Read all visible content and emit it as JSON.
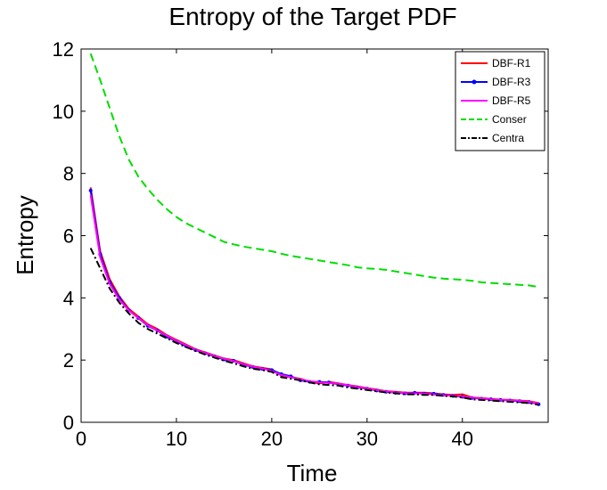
{
  "chart_data": {
    "type": "line",
    "title": "Entropy of the Target PDF",
    "xlabel": "Time",
    "ylabel": "Entropy",
    "xlim": [
      0,
      49
    ],
    "ylim": [
      0,
      12
    ],
    "xticks": [
      0,
      10,
      20,
      30,
      40
    ],
    "yticks": [
      0,
      2,
      4,
      6,
      8,
      10,
      12
    ],
    "grid": false,
    "legend_position": "top-right",
    "x": [
      1,
      2,
      3,
      4,
      5,
      6,
      7,
      8,
      9,
      10,
      11,
      12,
      13,
      14,
      15,
      16,
      17,
      18,
      19,
      20,
      21,
      22,
      23,
      24,
      25,
      26,
      27,
      28,
      29,
      30,
      31,
      32,
      33,
      34,
      35,
      36,
      37,
      38,
      39,
      40,
      41,
      42,
      43,
      44,
      45,
      46,
      47,
      48
    ],
    "series": [
      {
        "name": "DBF-R1",
        "color": "#ff0000",
        "dash": "",
        "marker": "none",
        "values": [
          7.55,
          5.5,
          4.6,
          4.05,
          3.65,
          3.4,
          3.15,
          3.0,
          2.8,
          2.65,
          2.5,
          2.35,
          2.25,
          2.15,
          2.05,
          2.0,
          1.9,
          1.8,
          1.75,
          1.7,
          1.5,
          1.45,
          1.4,
          1.3,
          1.25,
          1.3,
          1.25,
          1.2,
          1.15,
          1.1,
          1.05,
          1.0,
          0.98,
          0.95,
          0.95,
          0.95,
          0.93,
          0.9,
          0.88,
          0.9,
          0.8,
          0.78,
          0.75,
          0.73,
          0.72,
          0.7,
          0.68,
          0.62
        ]
      },
      {
        "name": "DBF-R3",
        "color": "#0000ff",
        "dash": "",
        "marker": "dot",
        "values": [
          7.45,
          5.4,
          4.5,
          4.0,
          3.6,
          3.35,
          3.1,
          2.95,
          2.75,
          2.6,
          2.45,
          2.32,
          2.22,
          2.12,
          2.02,
          1.98,
          1.85,
          1.78,
          1.72,
          1.68,
          1.55,
          1.48,
          1.35,
          1.3,
          1.3,
          1.28,
          1.22,
          1.18,
          1.12,
          1.08,
          1.02,
          0.98,
          0.95,
          0.93,
          0.95,
          0.92,
          0.92,
          0.88,
          0.85,
          0.82,
          0.78,
          0.76,
          0.74,
          0.72,
          0.7,
          0.68,
          0.65,
          0.58
        ]
      },
      {
        "name": "DBF-R5",
        "color": "#ff00ff",
        "dash": "",
        "marker": "none",
        "values": [
          7.3,
          5.3,
          4.45,
          3.95,
          3.6,
          3.35,
          3.12,
          2.95,
          2.78,
          2.62,
          2.48,
          2.33,
          2.23,
          2.13,
          2.04,
          1.97,
          1.87,
          1.79,
          1.73,
          1.65,
          1.52,
          1.45,
          1.38,
          1.32,
          1.28,
          1.27,
          1.24,
          1.19,
          1.13,
          1.09,
          1.03,
          0.99,
          0.96,
          0.94,
          0.93,
          0.92,
          0.9,
          0.87,
          0.85,
          0.83,
          0.79,
          0.77,
          0.74,
          0.72,
          0.71,
          0.69,
          0.66,
          0.6
        ]
      },
      {
        "name": "Conser",
        "color": "#00dd00",
        "dash": "9,5",
        "marker": "none",
        "values": [
          11.85,
          11.0,
          10.1,
          9.2,
          8.45,
          7.9,
          7.5,
          7.15,
          6.85,
          6.6,
          6.4,
          6.25,
          6.1,
          5.95,
          5.8,
          5.72,
          5.65,
          5.6,
          5.55,
          5.5,
          5.42,
          5.35,
          5.3,
          5.25,
          5.2,
          5.15,
          5.1,
          5.05,
          4.98,
          4.95,
          4.93,
          4.9,
          4.85,
          4.8,
          4.75,
          4.7,
          4.65,
          4.62,
          4.6,
          4.58,
          4.55,
          4.5,
          4.48,
          4.46,
          4.44,
          4.42,
          4.4,
          4.35
        ]
      },
      {
        "name": "Centra",
        "color": "#000000",
        "dash": "8,3,2,3",
        "marker": "none",
        "values": [
          5.6,
          4.95,
          4.3,
          3.85,
          3.5,
          3.2,
          3.0,
          2.85,
          2.7,
          2.55,
          2.42,
          2.3,
          2.18,
          2.08,
          1.98,
          1.9,
          1.8,
          1.72,
          1.68,
          1.62,
          1.45,
          1.4,
          1.35,
          1.28,
          1.22,
          1.2,
          1.18,
          1.12,
          1.08,
          1.04,
          1.0,
          0.96,
          0.93,
          0.9,
          0.9,
          0.88,
          0.88,
          0.85,
          0.83,
          0.8,
          0.74,
          0.72,
          0.7,
          0.68,
          0.66,
          0.64,
          0.62,
          0.56
        ]
      }
    ]
  }
}
